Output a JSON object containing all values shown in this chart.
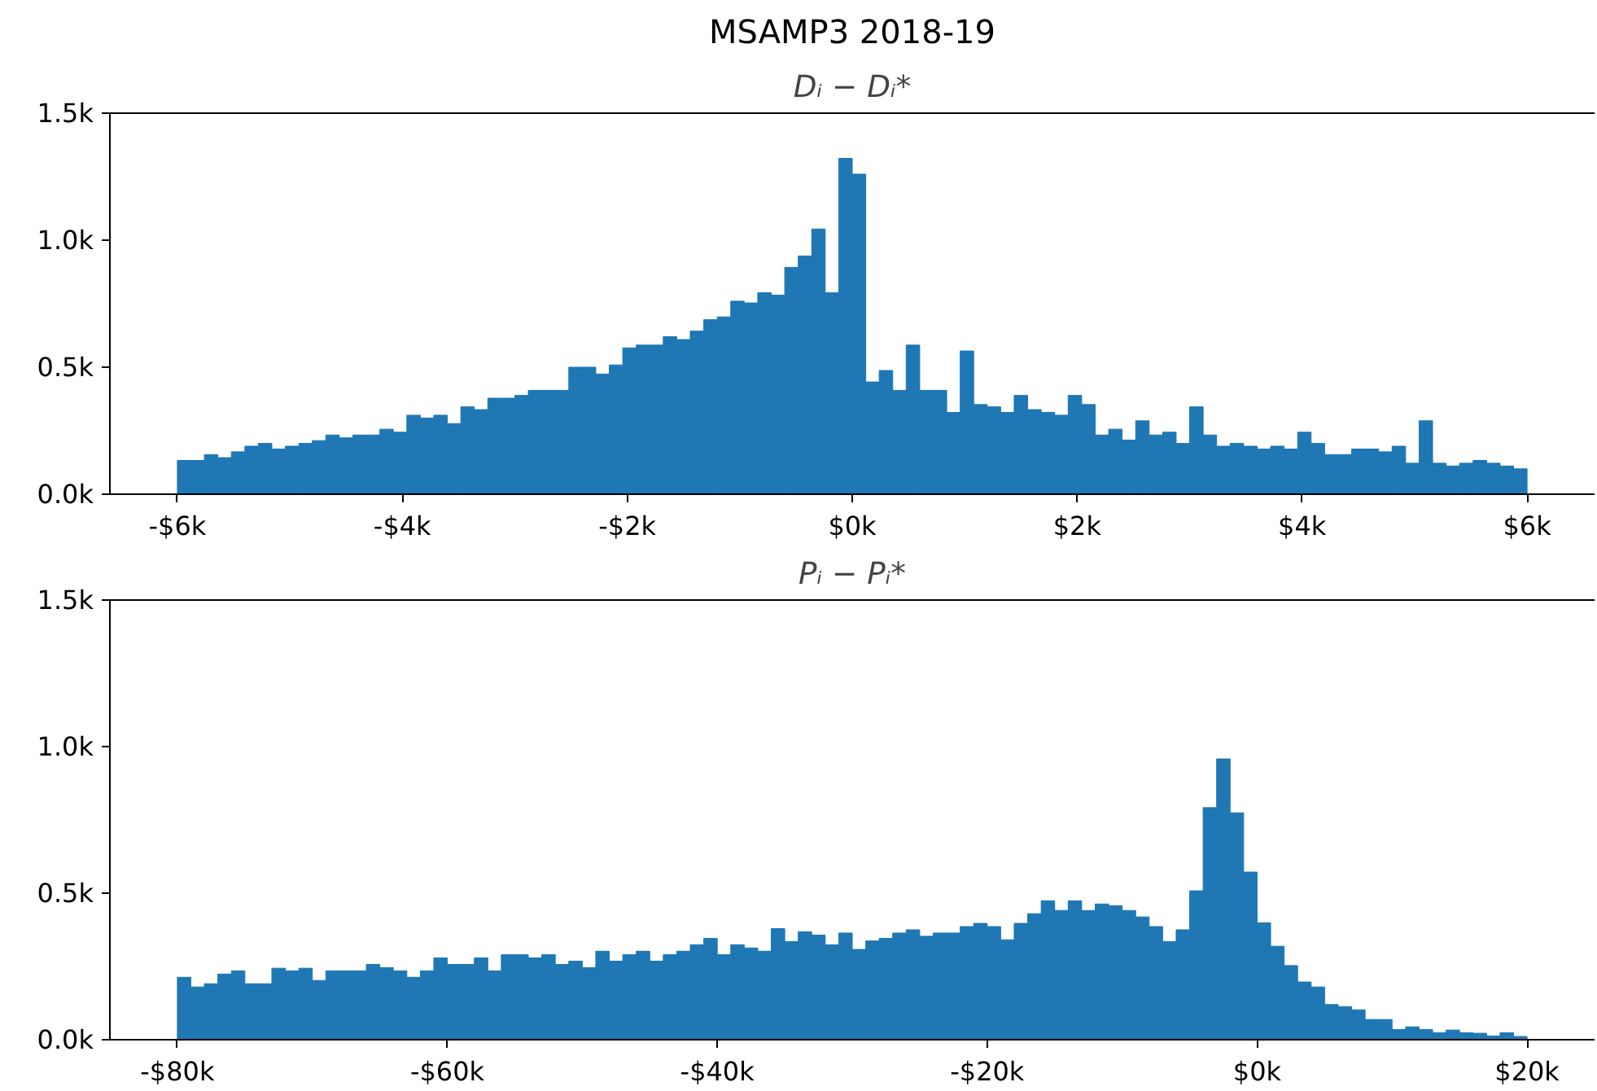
{
  "chart_data": [
    {
      "type": "histogram",
      "title": "MSAMP3 2018-19",
      "subtitle": "Dᵢ − Dᵢ*",
      "color": "#1f77b4",
      "bins": [
        -6000,
        -5880,
        -5760,
        -5640,
        -5520,
        -5400,
        -5280,
        -5160,
        -5040,
        -4920,
        -4800,
        -4680,
        -4560,
        -4440,
        -4320,
        -4200,
        -4080,
        -3960,
        -3840,
        -3720,
        -3600,
        -3480,
        -3360,
        -3240,
        -3120,
        -3000,
        -2880,
        -2760,
        -2640,
        -2520,
        -2400,
        -2280,
        -2160,
        -2040,
        -1920,
        -1800,
        -1680,
        -1560,
        -1440,
        -1320,
        -1200,
        -1080,
        -960,
        -840,
        -720,
        -600,
        -480,
        -360,
        -240,
        -120,
        0,
        120,
        240,
        360,
        480,
        600,
        720,
        840,
        960,
        1080,
        1200,
        1320,
        1440,
        1560,
        1680,
        1800,
        1920,
        2040,
        2160,
        2280,
        2400,
        2520,
        2640,
        2760,
        2880,
        3000,
        3120,
        3240,
        3360,
        3480,
        3600,
        3720,
        3840,
        3960,
        4080,
        4200,
        4320,
        4440,
        4560,
        4680,
        4800,
        4920,
        5040,
        5160,
        5280,
        5400,
        5520,
        5640,
        5760,
        5880,
        6000
      ],
      "values": [
        133,
        133,
        156,
        144,
        167,
        189,
        200,
        178,
        189,
        200,
        211,
        233,
        222,
        233,
        233,
        256,
        244,
        311,
        300,
        311,
        278,
        344,
        333,
        378,
        378,
        389,
        409,
        409,
        409,
        500,
        500,
        473,
        509,
        576,
        587,
        587,
        620,
        609,
        642,
        687,
        698,
        760,
        753,
        793,
        784,
        893,
        938,
        1044,
        793,
        1322,
        1260,
        442,
        487,
        409,
        587,
        409,
        409,
        322,
        564,
        353,
        344,
        322,
        389,
        333,
        322,
        311,
        389,
        353,
        233,
        256,
        213,
        289,
        233,
        244,
        200,
        344,
        233,
        189,
        200,
        189,
        178,
        189,
        178,
        244,
        200,
        156,
        156,
        178,
        178,
        167,
        189,
        122,
        289,
        122,
        111,
        122,
        133,
        122,
        111,
        100
      ],
      "xlim": [
        -6600,
        6600
      ],
      "ylim": [
        0,
        1500
      ],
      "xticks": [
        {
          "value": -6000,
          "label": "-$6k"
        },
        {
          "value": -4000,
          "label": "-$4k"
        },
        {
          "value": -2000,
          "label": "-$2k"
        },
        {
          "value": 0,
          "label": "$0k"
        },
        {
          "value": 2000,
          "label": "$2k"
        },
        {
          "value": 4000,
          "label": "$4k"
        },
        {
          "value": 6000,
          "label": "$6k"
        }
      ],
      "yticks": [
        {
          "value": 0,
          "label": "0.0k"
        },
        {
          "value": 500,
          "label": "0.5k"
        },
        {
          "value": 1000,
          "label": "1.0k"
        },
        {
          "value": 1500,
          "label": "1.5k"
        }
      ],
      "grid": false
    },
    {
      "type": "histogram",
      "title": "Pᵢ − Pᵢ*",
      "color": "#1f77b4",
      "bins": [
        -80000,
        -79000,
        -78000,
        -77000,
        -76000,
        -75000,
        -74000,
        -73000,
        -72000,
        -71000,
        -70000,
        -69000,
        -68000,
        -67000,
        -66000,
        -65000,
        -64000,
        -63000,
        -62000,
        -61000,
        -60000,
        -59000,
        -58000,
        -57000,
        -56000,
        -55000,
        -54000,
        -53000,
        -52000,
        -51000,
        -50000,
        -49000,
        -48000,
        -47000,
        -46000,
        -45000,
        -44000,
        -43000,
        -42000,
        -41000,
        -40000,
        -39000,
        -38000,
        -37000,
        -36000,
        -35000,
        -34000,
        -33000,
        -32000,
        -31000,
        -30000,
        -29000,
        -28000,
        -27000,
        -26000,
        -25000,
        -24000,
        -23000,
        -22000,
        -21000,
        -20000,
        -19000,
        -18000,
        -17000,
        -16000,
        -15000,
        -14000,
        -13000,
        -12000,
        -11000,
        -10000,
        -9000,
        -8000,
        -7000,
        -6000,
        -5000,
        -4000,
        -3000,
        -2000,
        -1000,
        0,
        1000,
        2000,
        3000,
        4000,
        5000,
        6000,
        7000,
        8000,
        9000,
        10000,
        11000,
        12000,
        13000,
        14000,
        15000,
        16000,
        17000,
        18000,
        19000,
        20000
      ],
      "values": [
        213,
        180,
        191,
        224,
        235,
        191,
        191,
        244,
        235,
        244,
        202,
        235,
        235,
        235,
        257,
        246,
        235,
        213,
        235,
        279,
        257,
        257,
        279,
        235,
        290,
        290,
        279,
        290,
        257,
        268,
        246,
        302,
        268,
        290,
        302,
        268,
        290,
        302,
        324,
        346,
        290,
        324,
        313,
        302,
        379,
        335,
        368,
        357,
        324,
        364,
        308,
        337,
        346,
        364,
        375,
        353,
        364,
        364,
        386,
        397,
        386,
        341,
        397,
        430,
        474,
        441,
        474,
        441,
        463,
        457,
        441,
        419,
        386,
        335,
        375,
        508,
        792,
        958,
        774,
        572,
        399,
        319,
        253,
        197,
        180,
        120,
        113,
        102,
        69,
        69,
        35,
        44,
        35,
        24,
        33,
        24,
        22,
        13,
        24,
        11
      ],
      "xlim": [
        -85000,
        25000
      ],
      "ylim": [
        0,
        1500
      ],
      "xticks": [
        {
          "value": -80000,
          "label": "-$80k"
        },
        {
          "value": -60000,
          "label": "-$60k"
        },
        {
          "value": -40000,
          "label": "-$40k"
        },
        {
          "value": -20000,
          "label": "-$20k"
        },
        {
          "value": 0,
          "label": "$0k"
        },
        {
          "value": 20000,
          "label": "$20k"
        }
      ],
      "yticks": [
        {
          "value": 0,
          "label": "0.0k"
        },
        {
          "value": 500,
          "label": "0.5k"
        },
        {
          "value": 1000,
          "label": "1.0k"
        },
        {
          "value": 1500,
          "label": "1.5k"
        }
      ],
      "grid": false
    }
  ]
}
